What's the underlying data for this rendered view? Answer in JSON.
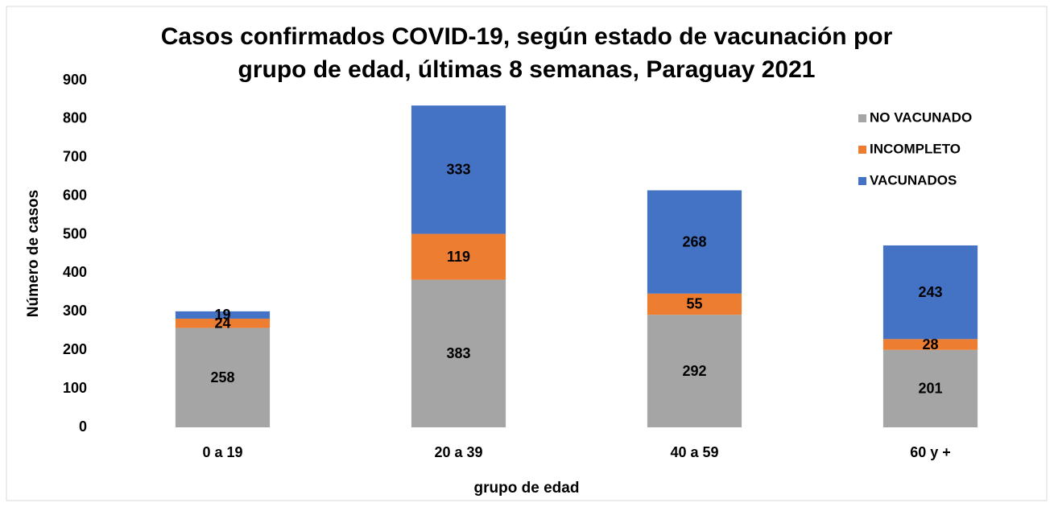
{
  "chart_data": {
    "type": "bar",
    "stacked": true,
    "title": [
      "Casos confirmados COVID-19, según estado de vacunación por",
      "grupo de edad, últimas 8 semanas, Paraguay 2021"
    ],
    "xlabel": "grupo de edad",
    "ylabel": "Número de casos",
    "categories": [
      "0 a 19",
      "20 a 39",
      "40 a 59",
      "60 y +"
    ],
    "series": [
      {
        "name": "NO VACUNADO",
        "color": "#a5a5a5",
        "values": [
          258,
          383,
          292,
          201
        ]
      },
      {
        "name": "INCOMPLETO",
        "color": "#ed7d31",
        "values": [
          24,
          119,
          55,
          28
        ]
      },
      {
        "name": "VACUNADOS",
        "color": "#4472c4",
        "values": [
          19,
          333,
          268,
          243
        ]
      }
    ],
    "ylim": [
      0,
      900
    ],
    "yticks": [
      0,
      100,
      200,
      300,
      400,
      500,
      600,
      700,
      800,
      900
    ],
    "grid": false,
    "legend": "upper right"
  }
}
